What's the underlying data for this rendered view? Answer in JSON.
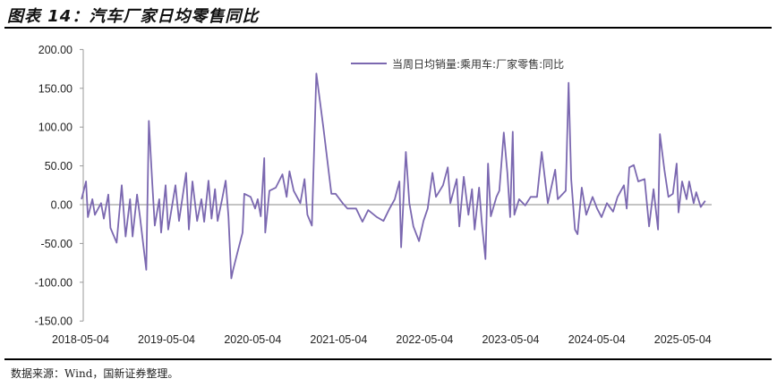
{
  "title": "图表 14：汽车厂家日均零售同比",
  "source": "数据来源：Wind，国新证券整理。",
  "chart_data": {
    "type": "line",
    "title": "",
    "xlabel": "",
    "ylabel": "",
    "ylim": [
      -150,
      200
    ],
    "yticks": [
      "200.00",
      "150.00",
      "100.00",
      "50.00",
      "0.00",
      "-50.00",
      "-100.00",
      "-150.00"
    ],
    "ytick_values": [
      200,
      150,
      100,
      50,
      0,
      -50,
      -100,
      -150
    ],
    "xticks": [
      "2018-05-04",
      "2019-05-04",
      "2020-05-04",
      "2021-05-04",
      "2022-05-04",
      "2023-05-04",
      "2024-05-04",
      "2025-05-04"
    ],
    "grid": false,
    "legend_position": "top-right",
    "series": [
      {
        "name": "当周日均销量:乘用车:厂家零售:同比",
        "color": "#7b68b0",
        "points": [
          [
            "2018-05-08",
            7
          ],
          [
            "2018-05-27",
            30
          ],
          [
            "2018-06-04",
            -16
          ],
          [
            "2018-06-23",
            7
          ],
          [
            "2018-07-04",
            -13
          ],
          [
            "2018-07-30",
            2
          ],
          [
            "2018-08-11",
            -18
          ],
          [
            "2018-08-30",
            13
          ],
          [
            "2018-09-08",
            -30
          ],
          [
            "2018-10-04",
            -49
          ],
          [
            "2018-10-26",
            25
          ],
          [
            "2018-11-11",
            -41
          ],
          [
            "2018-11-30",
            7
          ],
          [
            "2018-12-11",
            -41
          ],
          [
            "2018-12-30",
            13
          ],
          [
            "2019-01-11",
            -15
          ],
          [
            "2019-02-07",
            -84
          ],
          [
            "2019-02-18",
            108
          ],
          [
            "2019-03-04",
            30
          ],
          [
            "2019-03-15",
            -27
          ],
          [
            "2019-04-03",
            7
          ],
          [
            "2019-04-11",
            -36
          ],
          [
            "2019-04-30",
            25
          ],
          [
            "2019-05-11",
            -32
          ],
          [
            "2019-06-11",
            25
          ],
          [
            "2019-06-26",
            -21
          ],
          [
            "2019-07-26",
            41
          ],
          [
            "2019-08-07",
            -32
          ],
          [
            "2019-08-22",
            30
          ],
          [
            "2019-09-11",
            -21
          ],
          [
            "2019-09-29",
            7
          ],
          [
            "2019-10-11",
            -22
          ],
          [
            "2019-10-29",
            31
          ],
          [
            "2019-11-11",
            -18
          ],
          [
            "2019-11-26",
            20
          ],
          [
            "2019-12-07",
            -21
          ],
          [
            "2019-12-26",
            7
          ],
          [
            "2020-01-10",
            31
          ],
          [
            "2020-01-22",
            -15
          ],
          [
            "2020-02-03",
            -95
          ],
          [
            "2020-02-10",
            -85
          ],
          [
            "2020-02-29",
            -62
          ],
          [
            "2020-03-22",
            -36
          ],
          [
            "2020-03-29",
            14
          ],
          [
            "2020-04-25",
            10
          ],
          [
            "2020-05-14",
            -5
          ],
          [
            "2020-05-25",
            7
          ],
          [
            "2020-06-07",
            -15
          ],
          [
            "2020-06-22",
            60
          ],
          [
            "2020-06-26",
            -36
          ],
          [
            "2020-07-14",
            18
          ],
          [
            "2020-08-10",
            22
          ],
          [
            "2020-09-07",
            39
          ],
          [
            "2020-09-25",
            10
          ],
          [
            "2020-10-07",
            43
          ],
          [
            "2020-10-25",
            18
          ],
          [
            "2020-11-22",
            2
          ],
          [
            "2020-12-10",
            33
          ],
          [
            "2020-12-22",
            -13
          ],
          [
            "2021-01-10",
            -27
          ],
          [
            "2021-01-29",
            169
          ],
          [
            "2021-02-28",
            99
          ],
          [
            "2021-04-03",
            14
          ],
          [
            "2021-04-21",
            14
          ],
          [
            "2021-05-21",
            2
          ],
          [
            "2021-06-10",
            -5
          ],
          [
            "2021-07-17",
            -5
          ],
          [
            "2021-08-13",
            -22
          ],
          [
            "2021-09-06",
            -7
          ],
          [
            "2021-10-13",
            -16
          ],
          [
            "2021-11-10",
            -21
          ],
          [
            "2021-12-06",
            -5
          ],
          [
            "2021-12-28",
            7
          ],
          [
            "2022-01-17",
            30
          ],
          [
            "2022-01-24",
            -55
          ],
          [
            "2022-02-13",
            68
          ],
          [
            "2022-02-28",
            2
          ],
          [
            "2022-03-17",
            -28
          ],
          [
            "2022-04-10",
            -47
          ],
          [
            "2022-04-29",
            -21
          ],
          [
            "2022-05-17",
            -5
          ],
          [
            "2022-06-06",
            41
          ],
          [
            "2022-06-21",
            10
          ],
          [
            "2022-07-21",
            25
          ],
          [
            "2022-08-10",
            48
          ],
          [
            "2022-08-21",
            2
          ],
          [
            "2022-09-17",
            33
          ],
          [
            "2022-09-28",
            -28
          ],
          [
            "2022-10-17",
            36
          ],
          [
            "2022-11-06",
            -13
          ],
          [
            "2022-11-21",
            20
          ],
          [
            "2022-12-02",
            -32
          ],
          [
            "2022-12-21",
            22
          ],
          [
            "2023-01-02",
            -24
          ],
          [
            "2023-01-17",
            -70
          ],
          [
            "2023-01-28",
            53
          ],
          [
            "2023-02-09",
            -15
          ],
          [
            "2023-03-05",
            10
          ],
          [
            "2023-03-17",
            18
          ],
          [
            "2023-04-05",
            93
          ],
          [
            "2023-04-20",
            41
          ],
          [
            "2023-05-02",
            -16
          ],
          [
            "2023-05-13",
            94
          ],
          [
            "2023-05-20",
            -13
          ],
          [
            "2023-06-09",
            7
          ],
          [
            "2023-07-05",
            -1
          ],
          [
            "2023-07-28",
            10
          ],
          [
            "2023-08-24",
            10
          ],
          [
            "2023-09-13",
            68
          ],
          [
            "2023-10-09",
            2
          ],
          [
            "2023-11-09",
            45
          ],
          [
            "2023-11-20",
            7
          ],
          [
            "2023-12-24",
            18
          ],
          [
            "2024-01-05",
            157
          ],
          [
            "2024-01-16",
            33
          ],
          [
            "2024-02-01",
            -32
          ],
          [
            "2024-02-12",
            -38
          ],
          [
            "2024-03-01",
            22
          ],
          [
            "2024-03-20",
            -13
          ],
          [
            "2024-04-16",
            10
          ],
          [
            "2024-05-05",
            -5
          ],
          [
            "2024-05-24",
            -16
          ],
          [
            "2024-06-16",
            2
          ],
          [
            "2024-07-12",
            -9
          ],
          [
            "2024-07-31",
            10
          ],
          [
            "2024-08-27",
            25
          ],
          [
            "2024-09-08",
            -5
          ],
          [
            "2024-09-19",
            48
          ],
          [
            "2024-10-08",
            51
          ],
          [
            "2024-10-27",
            30
          ],
          [
            "2024-11-23",
            33
          ],
          [
            "2024-12-12",
            -28
          ],
          [
            "2024-12-31",
            20
          ],
          [
            "2025-01-19",
            -32
          ],
          [
            "2025-01-27",
            91
          ],
          [
            "2025-02-15",
            45
          ],
          [
            "2025-03-04",
            10
          ],
          [
            "2025-03-23",
            14
          ],
          [
            "2025-04-08",
            53
          ],
          [
            "2025-04-16",
            -10
          ],
          [
            "2025-05-01",
            30
          ],
          [
            "2025-05-20",
            7
          ],
          [
            "2025-05-31",
            30
          ],
          [
            "2025-06-19",
            2
          ],
          [
            "2025-06-30",
            16
          ],
          [
            "2025-07-19",
            -3
          ],
          [
            "2025-08-07",
            5
          ]
        ]
      }
    ]
  }
}
